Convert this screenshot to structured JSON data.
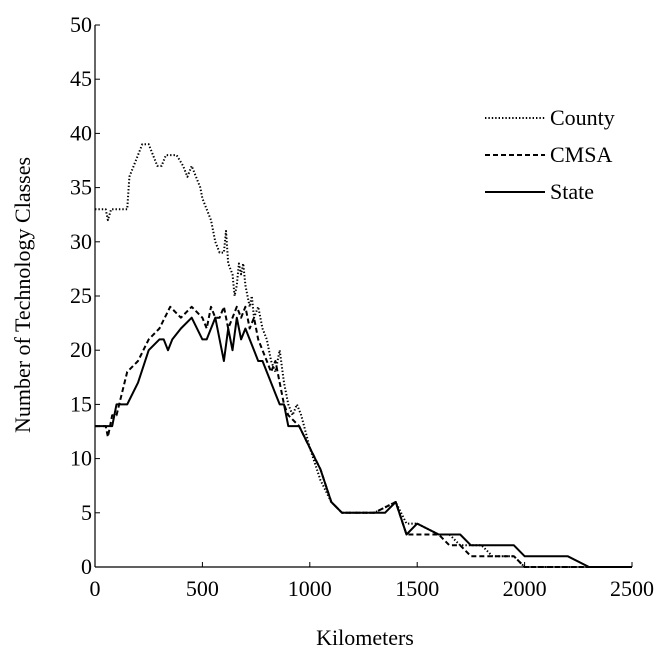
{
  "chart_data": {
    "type": "line",
    "title": "",
    "xlabel": "Kilometers",
    "ylabel": "Number of Technology Classes",
    "xlim": [
      0,
      2500
    ],
    "ylim": [
      0,
      50
    ],
    "xticks": [
      0,
      500,
      1000,
      1500,
      2000,
      2500
    ],
    "yticks": [
      0,
      5,
      10,
      15,
      20,
      25,
      30,
      35,
      40,
      45,
      50
    ],
    "grid": false,
    "legend_position": "top-right",
    "series": [
      {
        "name": "County",
        "style": "dotted",
        "x": [
          0,
          50,
          60,
          75,
          100,
          150,
          160,
          180,
          200,
          220,
          250,
          270,
          290,
          310,
          330,
          350,
          380,
          410,
          430,
          450,
          470,
          490,
          500,
          520,
          540,
          560,
          580,
          600,
          610,
          620,
          640,
          650,
          660,
          670,
          680,
          690,
          700,
          710,
          720,
          730,
          740,
          760,
          780,
          800,
          820,
          840,
          860,
          880,
          900,
          920,
          940,
          960,
          1000,
          1050,
          1100,
          1150,
          1200,
          1300,
          1400,
          1450,
          1500,
          1600,
          1650,
          1700,
          1750,
          1800,
          1850,
          1900,
          1950,
          2000,
          2050,
          2100,
          2200,
          2300,
          2400,
          2500
        ],
        "y": [
          33,
          33,
          32,
          33,
          33,
          33,
          36,
          37,
          38,
          39,
          39,
          38,
          37,
          37,
          38,
          38,
          38,
          37,
          36,
          37,
          36,
          35,
          34,
          33,
          32,
          30,
          29,
          29,
          31,
          28,
          27,
          25,
          26,
          28,
          27,
          28,
          26,
          25,
          24,
          25,
          23,
          24,
          22,
          21,
          19,
          18,
          20,
          17,
          15,
          14,
          15,
          14,
          11,
          8,
          6,
          5,
          5,
          5,
          6,
          4,
          4,
          3,
          3,
          2,
          2,
          2,
          1,
          1,
          1,
          0,
          0,
          0,
          0,
          0,
          0,
          0
        ]
      },
      {
        "name": "CMSA",
        "style": "dashed",
        "x": [
          0,
          50,
          60,
          80,
          100,
          150,
          200,
          250,
          300,
          350,
          400,
          450,
          500,
          520,
          540,
          560,
          580,
          600,
          620,
          640,
          660,
          680,
          700,
          720,
          740,
          760,
          780,
          800,
          820,
          840,
          860,
          880,
          900,
          950,
          1000,
          1050,
          1100,
          1150,
          1200,
          1300,
          1400,
          1450,
          1500,
          1600,
          1650,
          1700,
          1750,
          1800,
          1850,
          1900,
          1950,
          2000,
          2050,
          2100,
          2200,
          2300,
          2400,
          2500
        ],
        "y": [
          13,
          13,
          12,
          14,
          14,
          18,
          19,
          21,
          22,
          24,
          23,
          24,
          23,
          22,
          24,
          23,
          23,
          24,
          22,
          23,
          24,
          23,
          24,
          22,
          23,
          21,
          20,
          19,
          18,
          19,
          17,
          15,
          14,
          13,
          11,
          9,
          6,
          5,
          5,
          5,
          6,
          3,
          3,
          3,
          2,
          2,
          1,
          1,
          1,
          1,
          1,
          0,
          0,
          0,
          0,
          0,
          0,
          0
        ]
      },
      {
        "name": "State",
        "style": "solid",
        "x": [
          0,
          50,
          80,
          100,
          150,
          200,
          250,
          300,
          320,
          340,
          360,
          400,
          450,
          500,
          520,
          540,
          560,
          580,
          600,
          620,
          640,
          660,
          680,
          700,
          720,
          740,
          760,
          780,
          800,
          820,
          840,
          860,
          880,
          900,
          950,
          1000,
          1050,
          1100,
          1150,
          1200,
          1300,
          1350,
          1400,
          1450,
          1500,
          1600,
          1650,
          1700,
          1750,
          1800,
          1850,
          1900,
          1950,
          2000,
          2050,
          2100,
          2200,
          2300,
          2400,
          2500
        ],
        "y": [
          13,
          13,
          13,
          15,
          15,
          17,
          20,
          21,
          21,
          20,
          21,
          22,
          23,
          21,
          21,
          22,
          23,
          21,
          19,
          22,
          20,
          23,
          21,
          22,
          21,
          20,
          19,
          19,
          18,
          17,
          16,
          15,
          15,
          13,
          13,
          11,
          9,
          6,
          5,
          5,
          5,
          5,
          6,
          3,
          4,
          3,
          3,
          3,
          2,
          2,
          2,
          2,
          2,
          1,
          1,
          1,
          1,
          0,
          0,
          0
        ]
      }
    ]
  }
}
